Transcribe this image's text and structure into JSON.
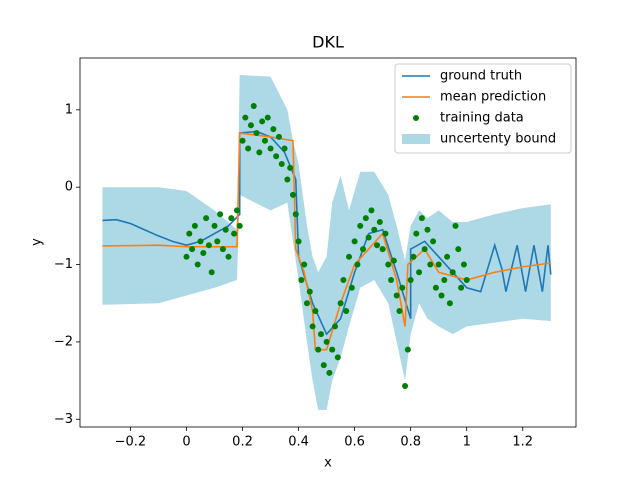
{
  "chart_data": {
    "type": "line",
    "title": "DKL",
    "x_label": "x",
    "y_label": "y",
    "xlim": [
      -0.38,
      1.39
    ],
    "ylim": [
      -3.1,
      1.67
    ],
    "xticks": [
      {
        "value": -0.2,
        "label": "−0.2"
      },
      0.0,
      0.2,
      0.4,
      0.6,
      0.8,
      1.0,
      1.2
    ],
    "yticks": [
      {
        "value": -3,
        "label": "−3"
      },
      {
        "value": -2,
        "label": "−2"
      },
      {
        "value": -1,
        "label": "−1"
      },
      0,
      1
    ],
    "legend": "upper right",
    "series": [
      {
        "name": "ground truth",
        "type": "line",
        "color": "#1f77b4",
        "x": [
          -0.3,
          -0.25,
          -0.2,
          -0.15,
          -0.1,
          -0.05,
          0.0,
          0.05,
          0.1,
          0.15,
          0.19,
          0.19,
          0.25,
          0.3,
          0.35,
          0.39,
          0.4,
          0.45,
          0.5,
          0.55,
          0.6,
          0.65,
          0.7,
          0.75,
          0.8,
          0.8,
          0.85,
          0.9,
          0.95,
          1.0,
          1.05,
          1.075,
          1.1,
          1.125,
          1.14,
          1.16,
          1.18,
          1.195,
          1.21,
          1.225,
          1.24,
          1.255,
          1.27,
          1.28,
          1.29,
          1.3
        ],
        "values": [
          -0.43,
          -0.42,
          -0.47,
          -0.55,
          -0.63,
          -0.7,
          -0.75,
          -0.7,
          -0.6,
          -0.5,
          -0.35,
          0.7,
          0.72,
          0.65,
          0.45,
          0.1,
          -0.9,
          -1.5,
          -1.9,
          -1.7,
          -1.1,
          -0.6,
          -0.55,
          -1.1,
          -1.7,
          -0.8,
          -0.7,
          -0.9,
          -1.1,
          -1.3,
          -1.35,
          -1.05,
          -0.75,
          -1.05,
          -1.35,
          -1.05,
          -0.75,
          -1.05,
          -1.35,
          -1.05,
          -0.75,
          -1.05,
          -1.35,
          -1.05,
          -0.75,
          -1.13
        ]
      },
      {
        "name": "mean prediction",
        "type": "line",
        "color": "#ff7f0e",
        "x": [
          -0.3,
          -0.1,
          0.0,
          0.18,
          0.19,
          0.3,
          0.38,
          0.39,
          0.42,
          0.45,
          0.46,
          0.5,
          0.55,
          0.6,
          0.65,
          0.7,
          0.75,
          0.78,
          0.79,
          0.85,
          0.9,
          0.95,
          1.0,
          1.1,
          1.2,
          1.3
        ],
        "values": [
          -0.76,
          -0.75,
          -0.77,
          -0.77,
          0.7,
          0.65,
          0.6,
          -0.8,
          -1.1,
          -1.6,
          -2.1,
          -2.1,
          -1.5,
          -1.0,
          -0.8,
          -0.6,
          -1.2,
          -1.8,
          -1.0,
          -0.8,
          -1.1,
          -1.15,
          -1.2,
          -1.1,
          -1.03,
          -0.98
        ]
      },
      {
        "name": "training data",
        "type": "scatter",
        "color": "#008000",
        "x": [
          0.0,
          0.01,
          0.02,
          0.03,
          0.04,
          0.05,
          0.06,
          0.07,
          0.08,
          0.09,
          0.1,
          0.11,
          0.12,
          0.13,
          0.14,
          0.15,
          0.16,
          0.17,
          0.18,
          0.19,
          0.2,
          0.21,
          0.22,
          0.23,
          0.24,
          0.25,
          0.26,
          0.27,
          0.28,
          0.29,
          0.3,
          0.31,
          0.32,
          0.33,
          0.34,
          0.35,
          0.36,
          0.37,
          0.38,
          0.39,
          0.4,
          0.41,
          0.42,
          0.43,
          0.44,
          0.45,
          0.46,
          0.47,
          0.48,
          0.49,
          0.5,
          0.51,
          0.52,
          0.53,
          0.54,
          0.55,
          0.56,
          0.57,
          0.58,
          0.59,
          0.6,
          0.61,
          0.62,
          0.63,
          0.64,
          0.65,
          0.66,
          0.67,
          0.68,
          0.69,
          0.7,
          0.71,
          0.72,
          0.73,
          0.74,
          0.75,
          0.76,
          0.77,
          0.78,
          0.79,
          0.8,
          0.81,
          0.82,
          0.83,
          0.84,
          0.85,
          0.86,
          0.87,
          0.88,
          0.89,
          0.9,
          0.91,
          0.92,
          0.93,
          0.94,
          0.95,
          0.96,
          0.97,
          0.98,
          0.99,
          1.0
        ],
        "values": [
          -0.9,
          -0.6,
          -0.8,
          -0.5,
          -1.0,
          -0.7,
          -0.85,
          -0.4,
          -0.75,
          -1.1,
          -0.5,
          -0.7,
          -0.35,
          -0.8,
          -0.55,
          -0.9,
          -0.4,
          -0.6,
          -0.3,
          -0.5,
          0.6,
          0.9,
          0.5,
          0.8,
          1.05,
          0.7,
          0.45,
          0.85,
          0.6,
          0.9,
          0.5,
          0.75,
          0.4,
          0.65,
          0.3,
          0.5,
          0.1,
          0.25,
          -0.1,
          -0.35,
          -0.7,
          -1.2,
          -1.0,
          -1.5,
          -1.35,
          -1.8,
          -1.6,
          -2.1,
          -1.9,
          -2.3,
          -2.0,
          -2.4,
          -2.1,
          -1.8,
          -2.2,
          -1.5,
          -1.2,
          -1.6,
          -0.9,
          -1.3,
          -0.7,
          -1.0,
          -0.5,
          -0.8,
          -0.4,
          -0.65,
          -0.3,
          -0.55,
          -0.75,
          -0.45,
          -0.8,
          -0.6,
          -1.0,
          -1.2,
          -0.95,
          -1.4,
          -1.6,
          -1.3,
          -2.57,
          -2.1,
          -1.2,
          -0.9,
          -0.6,
          -1.1,
          -0.4,
          -0.8,
          -0.55,
          -1.0,
          -0.7,
          -1.3,
          -1.0,
          -1.4,
          -1.2,
          -0.9,
          -1.5,
          -1.1,
          -0.5,
          -0.8,
          -1.3,
          -1.0,
          -1.2
        ]
      },
      {
        "name": "uncertenty bound",
        "type": "band",
        "color": "#add8e6",
        "x": [
          -0.3,
          -0.1,
          0.0,
          0.1,
          0.18,
          0.19,
          0.3,
          0.36,
          0.38,
          0.4,
          0.43,
          0.45,
          0.47,
          0.5,
          0.52,
          0.55,
          0.58,
          0.62,
          0.67,
          0.72,
          0.75,
          0.78,
          0.8,
          0.83,
          0.86,
          0.9,
          0.95,
          1.0,
          1.1,
          1.2,
          1.3
        ],
        "upper": [
          0.0,
          0.0,
          -0.05,
          -0.3,
          -0.55,
          1.45,
          1.43,
          1.0,
          0.6,
          0.3,
          -0.5,
          -0.9,
          -1.1,
          -0.9,
          -0.2,
          0.15,
          -0.3,
          0.2,
          0.2,
          -0.1,
          -0.5,
          -0.95,
          -0.5,
          -0.3,
          -0.4,
          -0.3,
          -0.45,
          -0.45,
          -0.35,
          -0.27,
          -0.22
        ],
        "lower": [
          -1.52,
          -1.5,
          -1.4,
          -1.3,
          -1.2,
          -0.1,
          -0.3,
          -0.2,
          -0.7,
          -1.2,
          -2.0,
          -2.5,
          -2.88,
          -2.88,
          -2.5,
          -2.2,
          -1.8,
          -1.3,
          -1.2,
          -1.5,
          -2.0,
          -2.5,
          -1.9,
          -1.5,
          -1.7,
          -1.8,
          -1.9,
          -1.8,
          -1.75,
          -1.7,
          -1.73
        ]
      }
    ]
  }
}
